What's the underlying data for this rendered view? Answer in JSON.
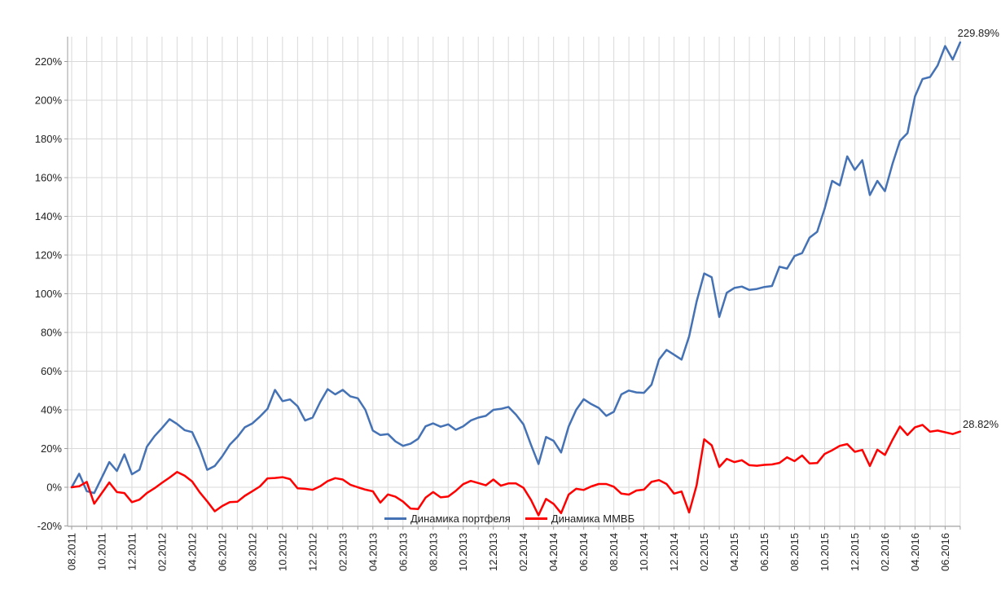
{
  "chart_data": {
    "type": "line",
    "title": "",
    "grid": true,
    "legend_position": "bottom-center-inside",
    "x_axis": {
      "unit": "months",
      "months_total": 60,
      "label_every_n_months": 2,
      "tick_labels": [
        "08.2011",
        "10.2011",
        "12.2011",
        "02.2012",
        "04.2012",
        "06.2012",
        "08.2012",
        "10.2012",
        "12.2012",
        "02.2013",
        "04.2013",
        "06.2013",
        "08.2013",
        "10.2013",
        "12.2013",
        "02.2014",
        "04.2014",
        "06.2014",
        "08.2014",
        "10.2014",
        "12.2014",
        "02.2015",
        "04.2015",
        "06.2015",
        "08.2015",
        "10.2015",
        "12.2015",
        "02.2016",
        "04.2016",
        "06.2016"
      ]
    },
    "y_axis": {
      "min": -20,
      "max": 220,
      "step": 20,
      "tick_labels": [
        "-20%",
        "0%",
        "20%",
        "40%",
        "60%",
        "80%",
        "100%",
        "120%",
        "140%",
        "160%",
        "180%",
        "200%",
        "220%"
      ]
    },
    "x_step_months": 0.5,
    "series": [
      {
        "name": "Динамика портфеля",
        "color": "#4472B4",
        "end_label": "229.89%",
        "end_value": 229.89,
        "values": [
          0,
          7,
          -2,
          -3,
          5,
          13,
          8.4,
          17,
          6.7,
          9,
          21,
          26.4,
          30.6,
          35.2,
          32.7,
          29.5,
          28.5,
          20,
          9,
          11,
          16,
          22,
          26,
          31,
          33,
          36.5,
          40.5,
          50.3,
          44.5,
          45.4,
          41.9,
          34.5,
          36,
          44,
          50.7,
          48,
          50.3,
          47,
          46,
          40,
          29.3,
          27,
          27.5,
          23.7,
          21.4,
          22.5,
          25,
          31.5,
          33,
          31.3,
          32.5,
          29.7,
          31.5,
          34.5,
          36,
          36.9,
          40,
          40.5,
          41.5,
          37.5,
          32.5,
          22,
          12,
          26,
          24,
          18,
          31.4,
          40,
          45.5,
          43,
          41,
          36.9,
          39,
          48,
          50,
          49,
          48.8,
          53,
          66,
          71,
          68.5,
          66,
          78,
          96,
          110.5,
          108.5,
          88,
          100.5,
          103,
          103.7,
          102,
          102.5,
          103.5,
          104,
          114,
          113,
          119.5,
          121,
          129,
          132,
          144,
          158.3,
          156,
          171,
          164,
          169,
          151,
          158.3,
          153,
          167,
          179,
          183,
          202,
          211,
          212,
          218,
          228,
          221,
          229.89
        ]
      },
      {
        "name": "Динамика ММВБ",
        "color": "#FF0000",
        "end_label": "28.82%",
        "end_value": 28.82,
        "values": [
          0,
          0.5,
          2.8,
          -8.5,
          -3,
          2.5,
          -2.5,
          -3,
          -7.7,
          -6.4,
          -3,
          -0.5,
          2.3,
          5,
          7.9,
          6,
          3,
          -2.6,
          -7.3,
          -12.4,
          -9.7,
          -7.7,
          -7.5,
          -4.4,
          -2,
          0.4,
          4.6,
          4.8,
          5.2,
          4.2,
          -0.5,
          -0.8,
          -1.3,
          0.5,
          3.2,
          4.7,
          4,
          1.3,
          0,
          -1.2,
          -2.1,
          -7.9,
          -3.7,
          -4.9,
          -7.4,
          -11,
          -11.3,
          -5.4,
          -2.5,
          -5.2,
          -4.8,
          -1.9,
          1.6,
          3.3,
          2.2,
          1,
          4,
          0.8,
          2,
          2,
          -0.3,
          -6.5,
          -14.5,
          -6,
          -8.6,
          -13.4,
          -3.8,
          -0.8,
          -1.4,
          0.4,
          1.7,
          1.7,
          0.3,
          -3.3,
          -3.8,
          -1.7,
          -1.2,
          2.8,
          3.7,
          1.7,
          -3.3,
          -2.2,
          -13,
          1,
          24.8,
          21.7,
          10.5,
          14.7,
          13,
          14,
          11.4,
          11.1,
          11.6,
          11.8,
          12.6,
          15.5,
          13.5,
          16.4,
          12.3,
          12.5,
          17.2,
          19.1,
          21.4,
          22.3,
          18.3,
          19.3,
          11,
          19.4,
          16.7,
          24.4,
          31.4,
          27,
          31,
          32.2,
          28.7,
          29.3,
          28.4,
          27.5,
          28.82
        ]
      }
    ],
    "colors": {
      "gridline": "#D9D9D9",
      "axis": "#9C9C9C",
      "tick_text": "#1f1f1f",
      "background": "#FFFFFF"
    }
  }
}
